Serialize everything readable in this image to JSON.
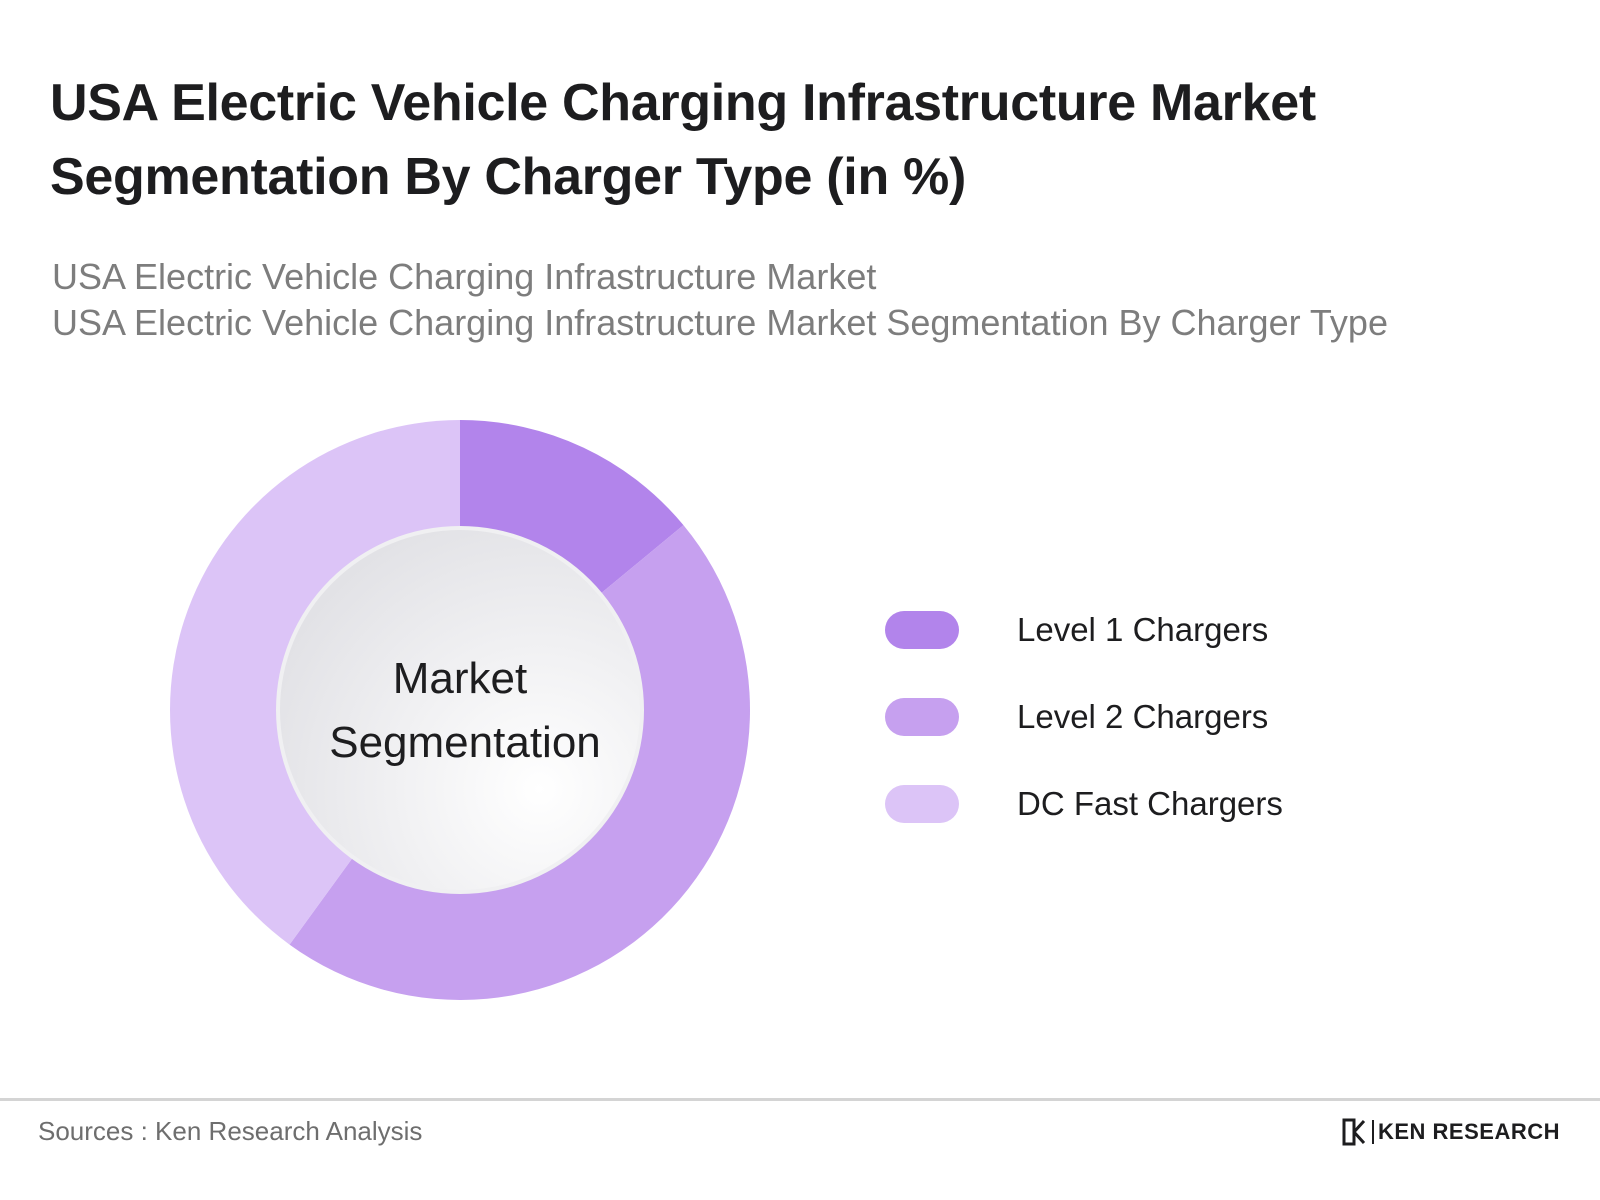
{
  "header": {
    "title": "USA Electric Vehicle Charging Infrastructure Market Segmentation By Charger Type (in %)",
    "subtitle_line1": "USA Electric Vehicle Charging Infrastructure Market",
    "subtitle_line2": "USA Electric Vehicle Charging Infrastructure Market Segmentation By Charger Type"
  },
  "chart_data": {
    "type": "pie",
    "title": "USA Electric Vehicle Charging Infrastructure Market Segmentation By Charger Type (in %)",
    "center_label_line1": "Market",
    "center_label_line2": "Segmentation",
    "categories": [
      "Level 1 Chargers",
      "Level 2 Chargers",
      "DC Fast Chargers"
    ],
    "values": [
      14,
      46,
      40
    ],
    "colors": [
      "#b284eb",
      "#c6a0ef",
      "#dcc4f7"
    ],
    "legend_position": "right",
    "donut": true
  },
  "footer": {
    "source": "Sources : Ken Research Analysis",
    "brand_text": "KEN RESEARCH"
  }
}
